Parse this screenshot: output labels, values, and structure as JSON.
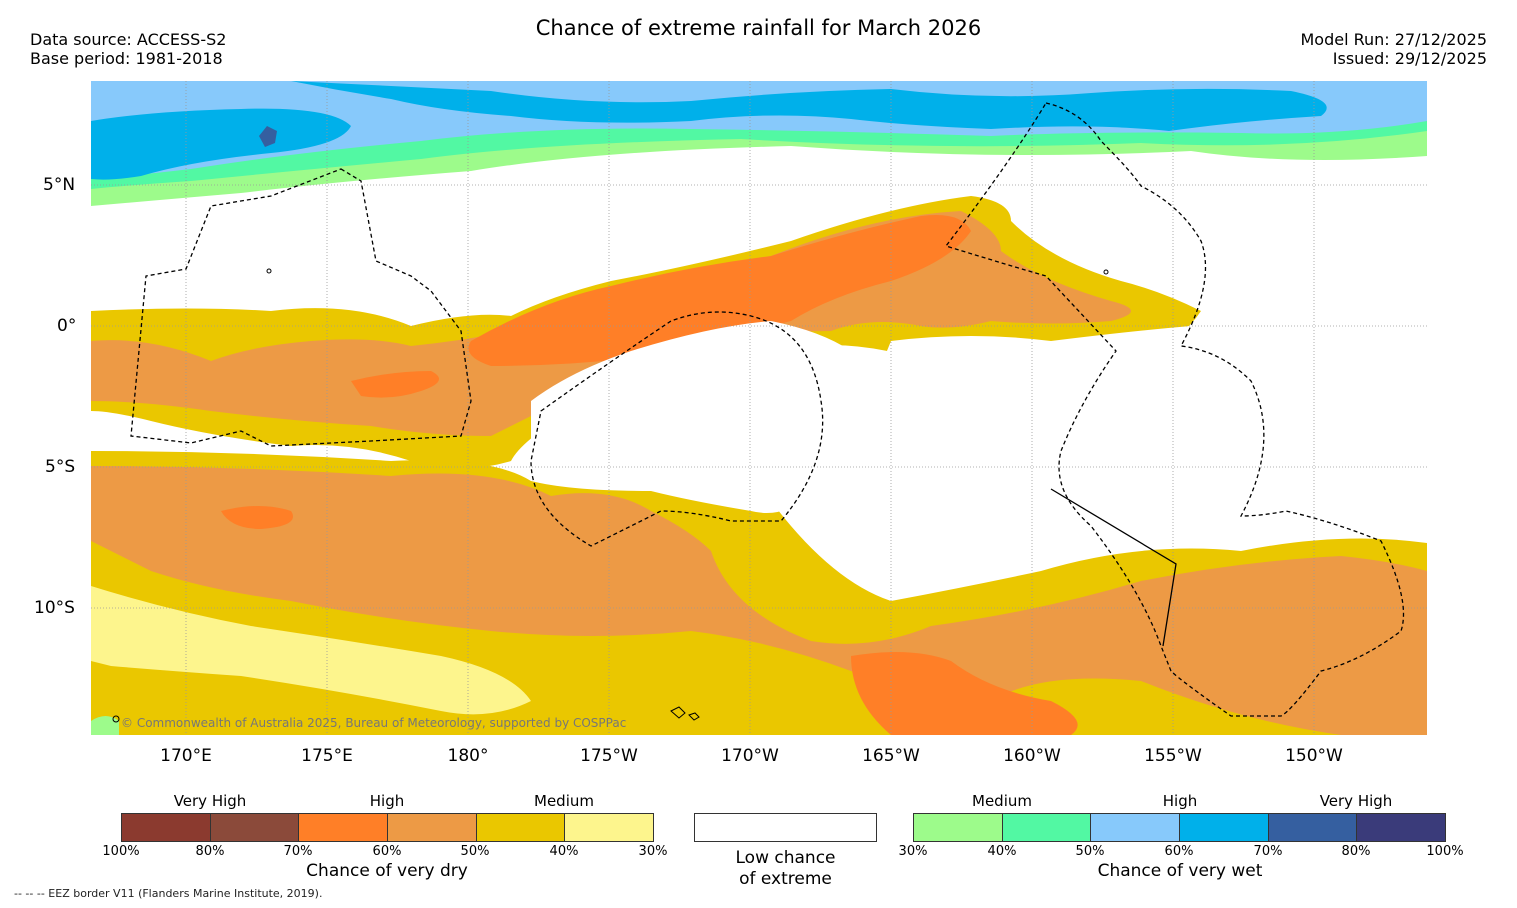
{
  "header": {
    "title": "Chance of extreme rainfall for March 2026",
    "data_source": "Data source: ACCESS-S2",
    "base_period": "Base period: 1981-2018",
    "model_run": "Model Run: 27/12/2025",
    "issued": "Issued: 29/12/2025"
  },
  "map": {
    "latitude_labels": [
      "5°N",
      "0°",
      "5°S",
      "10°S"
    ],
    "longitude_labels": [
      "170°E",
      "175°E",
      "180°",
      "175°W",
      "170°W",
      "165°W",
      "160°W",
      "155°W",
      "150°W"
    ],
    "copyright": "© Commonwealth of Australia 2025, Bureau of Meteorology, supported by COSPPac"
  },
  "legend": {
    "dry": {
      "levels": [
        "Very High",
        "High",
        "Medium"
      ],
      "ticks": [
        "100%",
        "80%",
        "70%",
        "60%",
        "50%",
        "40%",
        "30%"
      ],
      "colors": [
        "#8b3a2f",
        "#8b4a3a",
        "#ff7f27",
        "#ed9a45",
        "#eac700",
        "#fdf58d"
      ],
      "title": "Chance of very dry"
    },
    "neutral": {
      "line1": "Low chance",
      "line2": "of extreme",
      "color": "#ffffff"
    },
    "wet": {
      "levels": [
        "Medium",
        "High",
        "Very High"
      ],
      "ticks": [
        "30%",
        "40%",
        "50%",
        "60%",
        "70%",
        "80%",
        "100%"
      ],
      "colors": [
        "#9dfb8b",
        "#52f8a3",
        "#87c9fb",
        "#00b0ea",
        "#355fa0",
        "#3a3b7a"
      ],
      "title": "Chance of very wet"
    }
  },
  "footer": {
    "eez_note": "--  --  -- EEZ border V11 (Flanders Marine Institute, 2019)."
  }
}
